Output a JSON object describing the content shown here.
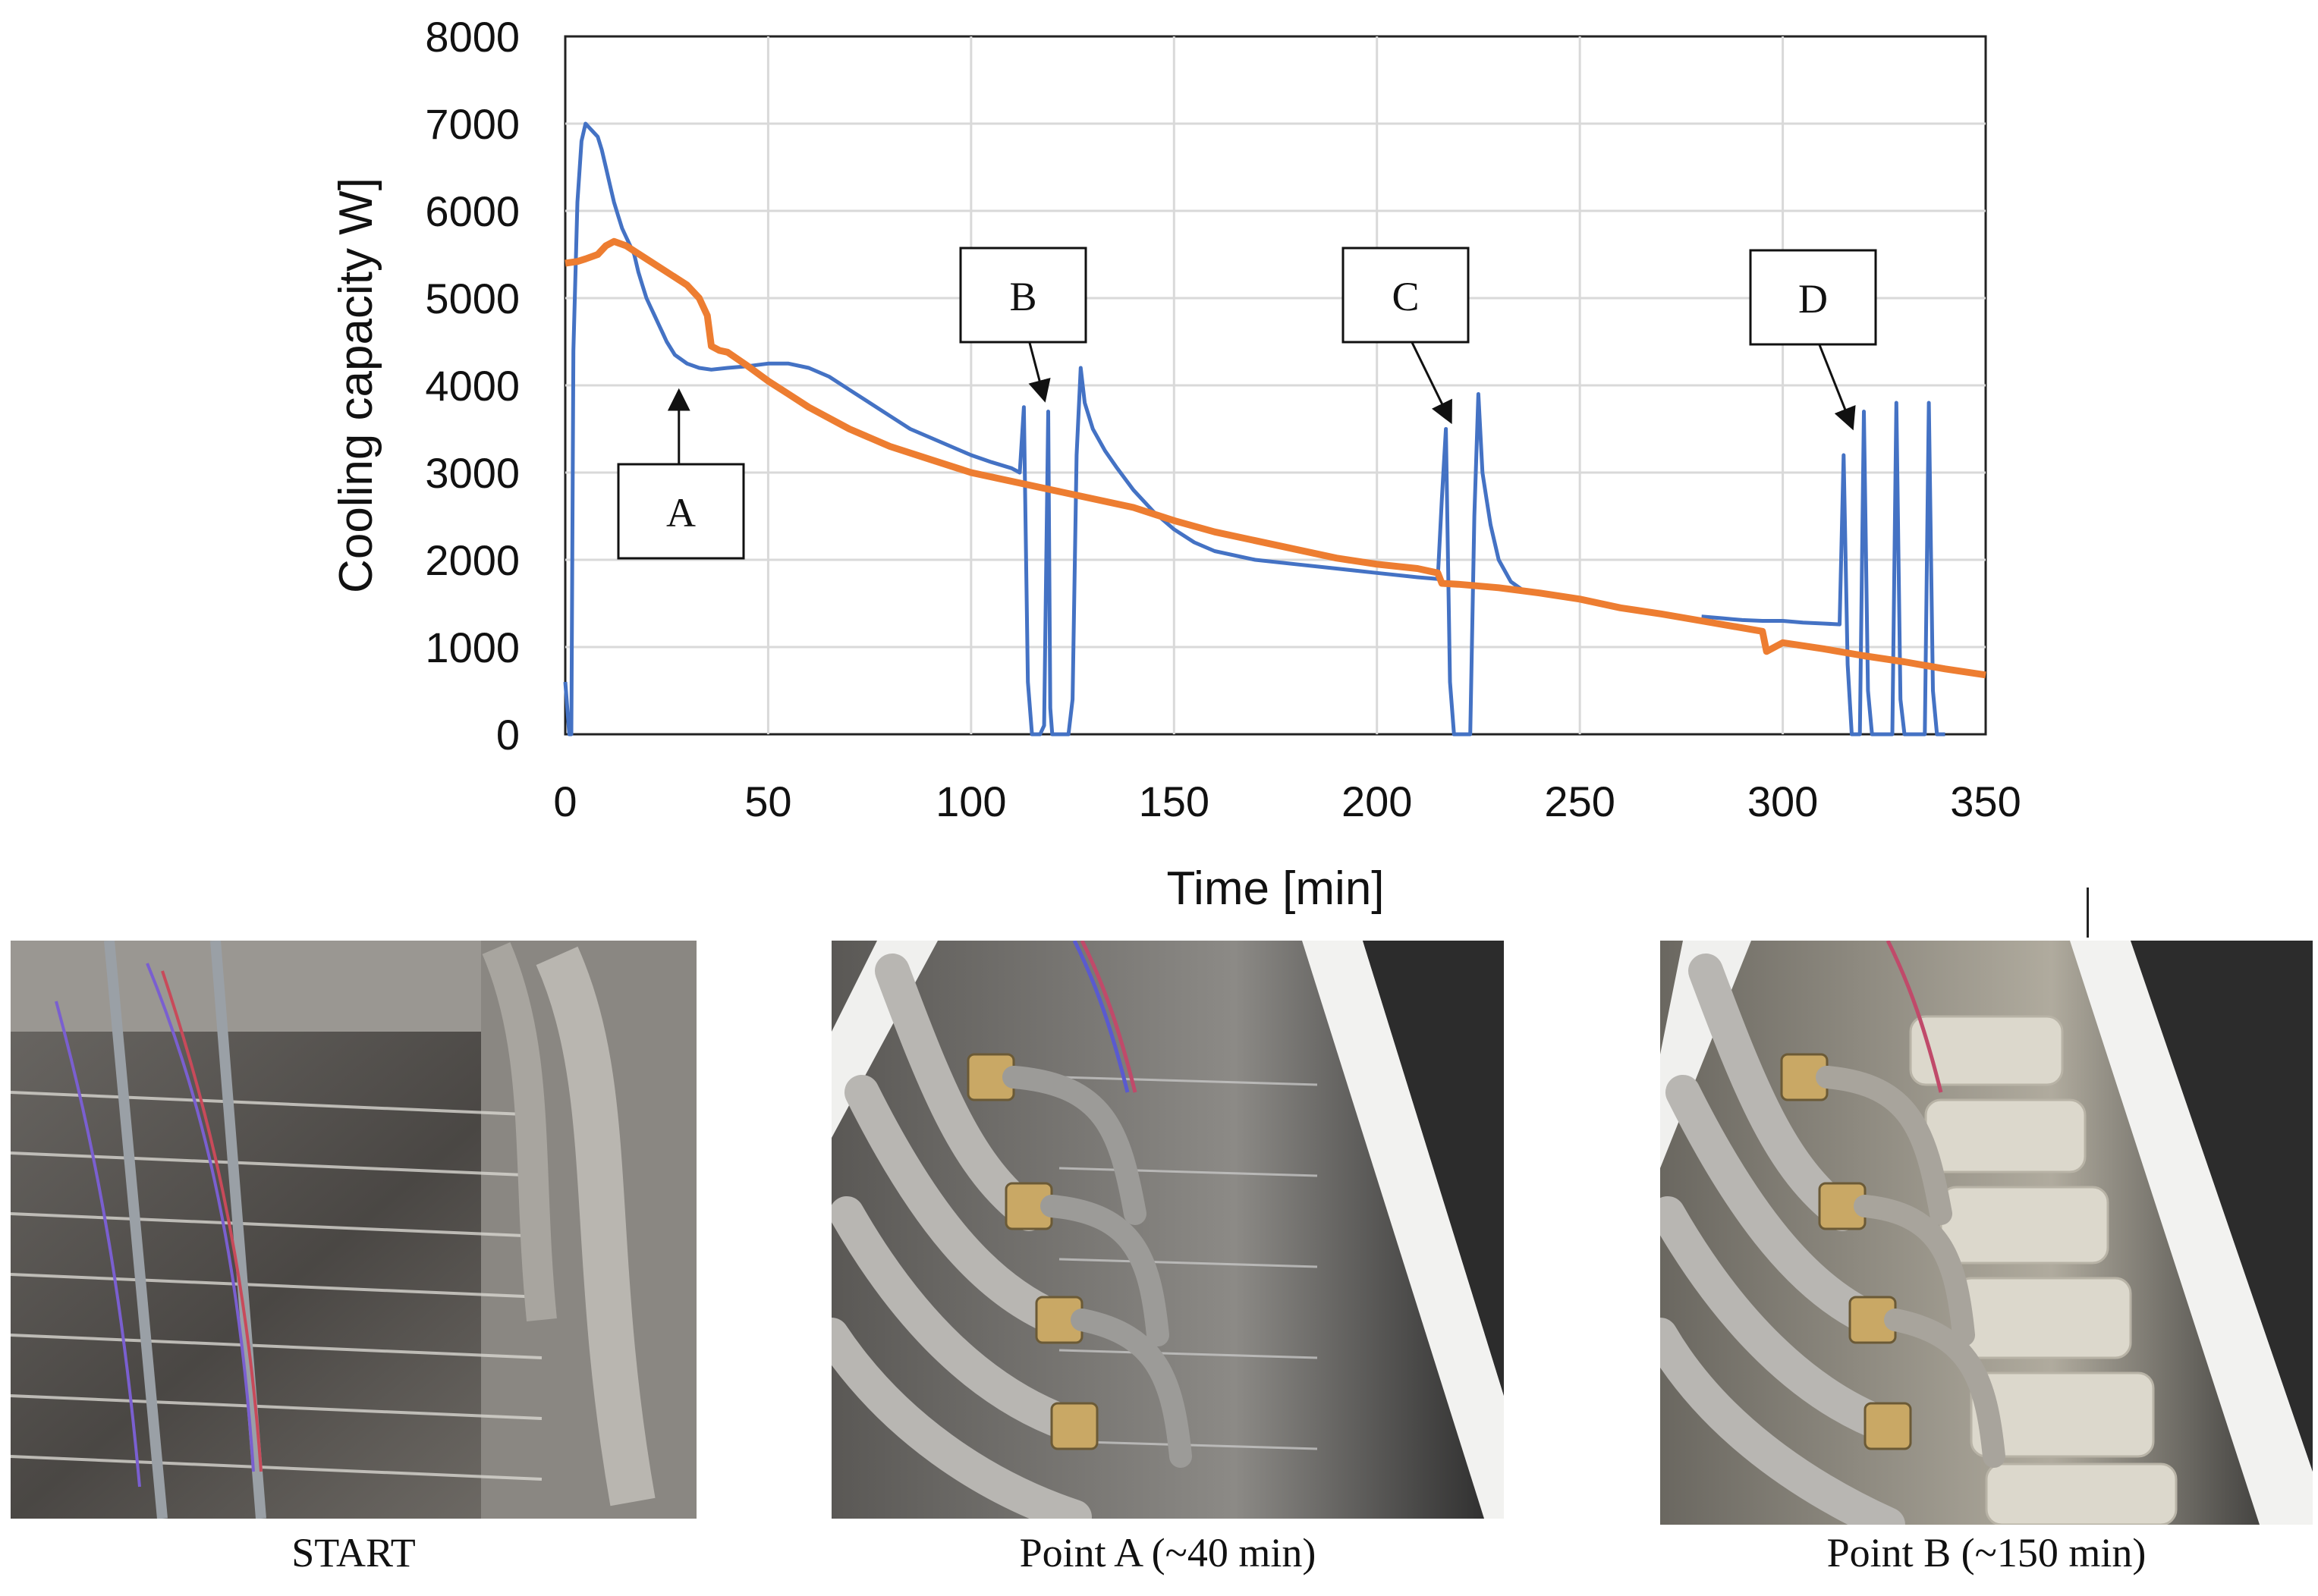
{
  "chart_data": {
    "type": "line",
    "xlabel": "Time [min]",
    "ylabel": "Cooling capacity W]",
    "xlim": [
      0,
      350
    ],
    "ylim": [
      0,
      8000
    ],
    "x_ticks": [
      0,
      50,
      100,
      150,
      200,
      250,
      300,
      350
    ],
    "y_ticks": [
      0,
      1000,
      2000,
      3000,
      4000,
      5000,
      6000,
      7000,
      8000
    ],
    "grid": true,
    "series": [
      {
        "color": "#4472C4",
        "x": [
          0,
          1,
          1.5,
          2,
          3,
          4,
          5,
          6,
          7,
          8,
          9,
          10,
          11,
          12,
          13,
          14,
          15,
          16,
          17,
          18,
          19,
          20,
          21,
          22,
          23,
          24,
          25,
          27,
          30,
          33,
          36,
          40,
          45,
          50,
          55,
          60,
          65,
          70,
          75,
          80,
          85,
          90,
          95,
          100,
          105,
          110,
          112,
          113,
          114,
          115,
          116,
          117,
          118,
          119,
          119.5,
          120,
          121,
          122,
          123,
          124,
          125,
          126,
          127,
          128,
          130,
          133,
          136,
          140,
          145,
          150,
          155,
          160,
          170,
          180,
          190,
          200,
          210,
          215,
          216,
          217,
          218,
          219,
          220,
          221,
          222,
          223,
          224,
          225,
          226,
          227,
          228,
          230,
          233,
          236
        ],
        "y": [
          600,
          0,
          0,
          4400,
          6100,
          6800,
          7000,
          6950,
          6900,
          6850,
          6700,
          6500,
          6300,
          6100,
          5950,
          5800,
          5700,
          5600,
          5500,
          5300,
          5150,
          5000,
          4900,
          4800,
          4700,
          4600,
          4500,
          4350,
          4250,
          4200,
          4180,
          4200,
          4220,
          4250,
          4250,
          4200,
          4100,
          3950,
          3800,
          3650,
          3500,
          3400,
          3300,
          3200,
          3120,
          3050,
          3000,
          3750,
          600,
          0,
          0,
          0,
          100,
          3700,
          300,
          0,
          0,
          0,
          0,
          0,
          400,
          3200,
          4200,
          3800,
          3500,
          3250,
          3050,
          2800,
          2550,
          2350,
          2200,
          2100,
          2000,
          1950,
          1900,
          1850,
          1800,
          1780,
          2700,
          3500,
          600,
          0,
          0,
          0,
          0,
          0,
          2500,
          3900,
          3000,
          2700,
          2400,
          2000,
          1750,
          1650
        ]
      },
      {
        "color": "#4472C4",
        "x": [
          280,
          285,
          290,
          295,
          300,
          305,
          310,
          314,
          315,
          316,
          317,
          318,
          319,
          320,
          321,
          322,
          323,
          324,
          325,
          326,
          327,
          328,
          329,
          330,
          331,
          332,
          333,
          334,
          335,
          336,
          337,
          338,
          339,
          340
        ],
        "y": [
          1350,
          1330,
          1310,
          1300,
          1300,
          1280,
          1270,
          1260,
          3200,
          800,
          0,
          0,
          0,
          3700,
          500,
          0,
          0,
          0,
          0,
          0,
          0,
          3800,
          400,
          0,
          0,
          0,
          0,
          0,
          0,
          3800,
          500,
          0,
          0,
          0
        ]
      },
      {
        "color": "#ED7D31",
        "x": [
          0,
          3,
          5,
          8,
          10,
          12,
          15,
          20,
          25,
          30,
          33,
          35,
          36,
          38,
          40,
          45,
          50,
          55,
          60,
          70,
          80,
          90,
          100,
          110,
          120,
          130,
          140,
          150,
          160,
          170,
          180,
          190,
          200,
          210,
          215,
          216,
          220,
          230,
          240,
          250,
          260,
          270,
          280,
          290,
          295,
          296,
          300,
          310,
          320,
          330,
          340,
          350
        ],
        "y": [
          5400,
          5420,
          5450,
          5500,
          5600,
          5650,
          5600,
          5450,
          5300,
          5150,
          5000,
          4800,
          4450,
          4400,
          4380,
          4220,
          4050,
          3900,
          3750,
          3500,
          3300,
          3150,
          3000,
          2900,
          2800,
          2700,
          2600,
          2450,
          2320,
          2220,
          2120,
          2020,
          1950,
          1900,
          1850,
          1730,
          1720,
          1680,
          1620,
          1550,
          1450,
          1380,
          1300,
          1220,
          1180,
          950,
          1050,
          980,
          900,
          830,
          750,
          680
        ]
      }
    ],
    "annotations": [
      {
        "label": "A",
        "target_x": 28,
        "target_y": 4020
      },
      {
        "label": "B",
        "target_x": 118,
        "target_y": 3800
      },
      {
        "label": "C",
        "target_x": 218,
        "target_y": 3550
      },
      {
        "label": "D",
        "target_x": 317,
        "target_y": 3480
      }
    ]
  },
  "photos": [
    {
      "name": "start-photo",
      "caption": "START"
    },
    {
      "name": "point-a-photo",
      "caption": "Point A (~40 min)"
    },
    {
      "name": "point-b-photo",
      "caption": "Point B (~150 min)"
    }
  ]
}
